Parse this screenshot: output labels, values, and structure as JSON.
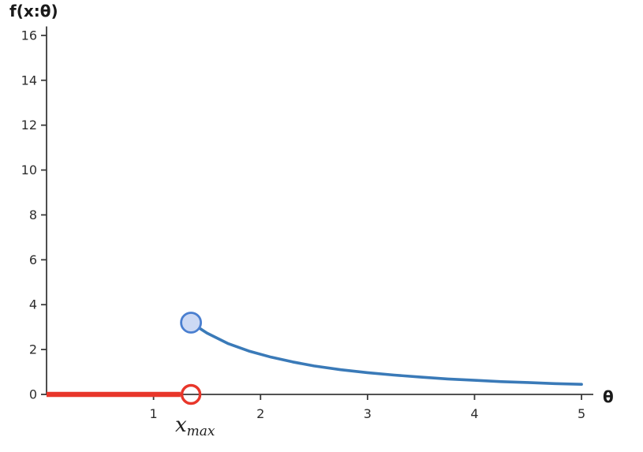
{
  "figure": {
    "title": "f(x:θ)",
    "x_axis_label": "θ"
  },
  "annotation": {
    "base": "x",
    "sub": "max"
  },
  "colors": {
    "red": "#e8362a",
    "blue": "#3a7ab8",
    "blue_marker_fill": "#ccd9f4",
    "blue_marker_stroke": "#4a7fd0",
    "axis": "#3a3a3a",
    "tick_text": "#2e2e2e"
  },
  "chart_data": {
    "type": "line",
    "title": "",
    "xlabel": "θ",
    "ylabel": "f(x:θ)",
    "xlim": [
      0,
      5.11
    ],
    "ylim": [
      0,
      16.4
    ],
    "x_ticks": [
      1,
      2,
      3,
      4,
      5
    ],
    "y_ticks": [
      0,
      2,
      4,
      6,
      8,
      10,
      12,
      14,
      16
    ],
    "grid": false,
    "legend": null,
    "series": [
      {
        "name": "zero-likelihood-segment",
        "description": "f(x:θ)=0 for θ < x_max",
        "color": "#e8362a",
        "line_width": 6.5,
        "points": [
          [
            0,
            0
          ],
          [
            1.35,
            0
          ]
        ],
        "end_marker": {
          "x": 1.35,
          "y": 0,
          "type": "open-circle",
          "stroke": "#e8362a",
          "fill": "none"
        }
      },
      {
        "name": "likelihood-curve",
        "description": "f(x:θ) decreasing for θ ≥ x_max",
        "color": "#3a7ab8",
        "line_width": 3.6,
        "points": [
          [
            1.35,
            3.2
          ],
          [
            1.5,
            2.73
          ],
          [
            1.7,
            2.26
          ],
          [
            1.9,
            1.92
          ],
          [
            2.1,
            1.66
          ],
          [
            2.3,
            1.45
          ],
          [
            2.5,
            1.27
          ],
          [
            2.75,
            1.1
          ],
          [
            3.0,
            0.97
          ],
          [
            3.25,
            0.86
          ],
          [
            3.5,
            0.77
          ],
          [
            3.75,
            0.69
          ],
          [
            4.0,
            0.63
          ],
          [
            4.25,
            0.57
          ],
          [
            4.5,
            0.53
          ],
          [
            4.75,
            0.48
          ],
          [
            5.0,
            0.45
          ]
        ],
        "start_marker": {
          "x": 1.35,
          "y": 3.2,
          "type": "filled-circle",
          "stroke": "#4a7fd0",
          "fill": "#ccd9f4"
        }
      }
    ],
    "annotations": [
      {
        "text": "x_max",
        "x": 1.35,
        "y": 0,
        "position": "below-x-axis"
      }
    ]
  }
}
